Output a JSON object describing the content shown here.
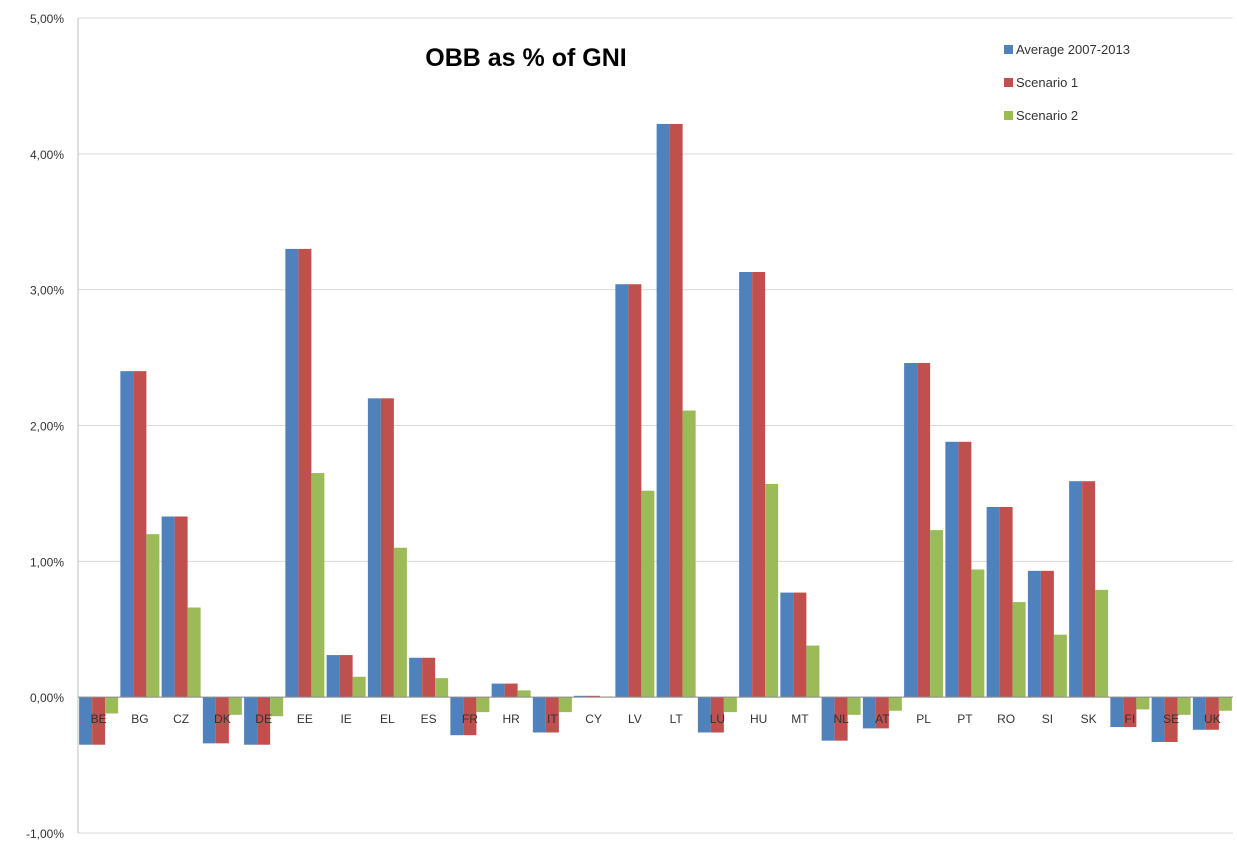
{
  "chart_data": {
    "type": "bar",
    "title": "OBB as % of GNI",
    "xlabel": "",
    "ylabel": "",
    "ylim": [
      -1.0,
      5.0
    ],
    "yticks": [
      5.0,
      4.0,
      3.0,
      2.0,
      1.0,
      0.0,
      -1.0
    ],
    "ytick_labels": [
      "5,00%",
      "4,00%",
      "3,00%",
      "2,00%",
      "1,00%",
      "0,00%",
      "-1,00%"
    ],
    "grid": true,
    "legend_position": "top-right",
    "categories": [
      "BE",
      "BG",
      "CZ",
      "DK",
      "DE",
      "EE",
      "IE",
      "EL",
      "ES",
      "FR",
      "HR",
      "IT",
      "CY",
      "LV",
      "LT",
      "LU",
      "HU",
      "MT",
      "NL",
      "AT",
      "PL",
      "PT",
      "RO",
      "SI",
      "SK",
      "FI",
      "SE",
      "UK"
    ],
    "series": [
      {
        "name": "Average 2007-2013",
        "color": "#4f81bd",
        "values": [
          -0.35,
          2.4,
          1.33,
          -0.34,
          -0.35,
          3.3,
          0.31,
          2.2,
          0.29,
          -0.28,
          0.1,
          -0.26,
          0.01,
          3.04,
          4.22,
          -0.26,
          3.13,
          0.77,
          -0.32,
          -0.23,
          2.46,
          1.88,
          1.4,
          0.93,
          1.59,
          -0.22,
          -0.33,
          -0.24
        ]
      },
      {
        "name": "Scenario 1",
        "color": "#c0504d",
        "values": [
          -0.35,
          2.4,
          1.33,
          -0.34,
          -0.35,
          3.3,
          0.31,
          2.2,
          0.29,
          -0.28,
          0.1,
          -0.26,
          0.01,
          3.04,
          4.22,
          -0.26,
          3.13,
          0.77,
          -0.32,
          -0.23,
          2.46,
          1.88,
          1.4,
          0.93,
          1.59,
          -0.22,
          -0.33,
          -0.24
        ]
      },
      {
        "name": "Scenario 2",
        "color": "#9bbb59",
        "values": [
          -0.12,
          1.2,
          0.66,
          -0.13,
          -0.14,
          1.65,
          0.15,
          1.1,
          0.14,
          -0.11,
          0.05,
          -0.11,
          0.005,
          1.52,
          2.11,
          -0.11,
          1.57,
          0.38,
          -0.13,
          -0.1,
          1.23,
          0.94,
          0.7,
          0.46,
          0.79,
          -0.09,
          -0.13,
          -0.1
        ]
      }
    ]
  }
}
